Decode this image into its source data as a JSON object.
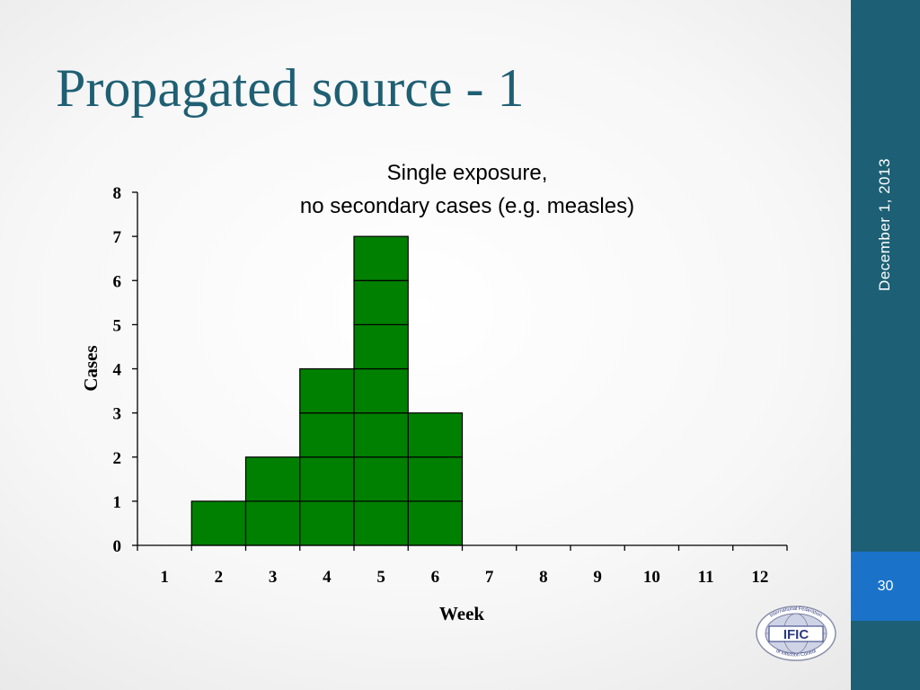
{
  "slide": {
    "title": "Propagated source - 1",
    "date": "December 1, 2013",
    "page_number": "30",
    "logo_text": "IFIC",
    "logo_arc_top": "International Federation",
    "logo_arc_bottom": "of Infection Control"
  },
  "colors": {
    "title": "#1f5f73",
    "side_band": "#1d6075",
    "page_badge": "#1a73c9",
    "bar_fill": "#008000",
    "bar_stroke": "#000000"
  },
  "chart_data": {
    "type": "bar",
    "title_lines": [
      "Single exposure,",
      "no secondary cases (e.g. measles)"
    ],
    "xlabel": "Week",
    "ylabel": "Cases",
    "categories": [
      "1",
      "2",
      "3",
      "4",
      "5",
      "6",
      "7",
      "8",
      "9",
      "10",
      "11",
      "12"
    ],
    "values": [
      0,
      1,
      2,
      4,
      7,
      3,
      0,
      0,
      0,
      0,
      0,
      0
    ],
    "ylim": [
      0,
      8
    ],
    "yticks": [
      "0",
      "1",
      "2",
      "3",
      "4",
      "5",
      "6",
      "7",
      "8"
    ],
    "bar_style": "stacked unit cells",
    "grid": false,
    "legend": "none"
  }
}
